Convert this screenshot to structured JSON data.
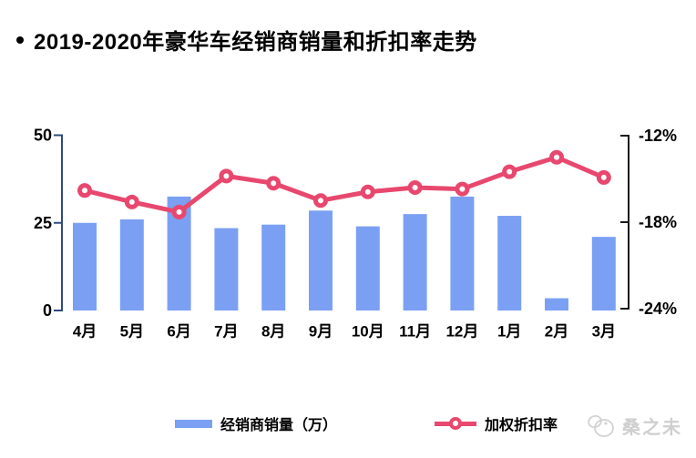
{
  "header": {
    "bullet": "•",
    "title": "2019-2020年豪华车经销商销量和折扣率走势"
  },
  "chart_data": {
    "type": "combo-bar-line",
    "title": "2019-2020年豪华车经销商销量和折扣率走势",
    "categories": [
      "4月",
      "5月",
      "6月",
      "7月",
      "8月",
      "9月",
      "10月",
      "11月",
      "12月",
      "1月",
      "2月",
      "3月"
    ],
    "series": [
      {
        "name": "经销商销量（万）",
        "type": "bar",
        "y_axis": "left",
        "color": "#7BA0F3",
        "values": [
          25,
          26,
          32.5,
          23.5,
          24.5,
          28.5,
          24,
          27.5,
          32.5,
          27,
          3.5,
          21
        ]
      },
      {
        "name": "加权折扣率",
        "type": "line",
        "y_axis": "right",
        "color": "#E8486E",
        "marker": "open-circle",
        "values": [
          -15.8,
          -16.6,
          -17.3,
          -14.8,
          -15.3,
          -16.5,
          -15.9,
          -15.6,
          -15.7,
          -14.5,
          -13.5,
          -14.9
        ]
      }
    ],
    "left_axis": {
      "min": 0,
      "max": 50,
      "ticks": [
        "50",
        "25",
        "0"
      ],
      "line_color": "#2E4B7C",
      "label_color": "#000000"
    },
    "right_axis": {
      "min": -24,
      "max": -12,
      "ticks": [
        "-12%",
        "-18%",
        "-24%"
      ],
      "line_color": "#1a1a1a",
      "label_color": "#000000"
    },
    "grid": false,
    "legend": {
      "position": "bottom",
      "items": [
        {
          "label": "经销商销量（万）",
          "swatch": "bar"
        },
        {
          "label": "加权折扣率",
          "swatch": "line-marker"
        }
      ]
    }
  },
  "watermark": {
    "text": "桑之未",
    "color": "#cfcfcf"
  }
}
